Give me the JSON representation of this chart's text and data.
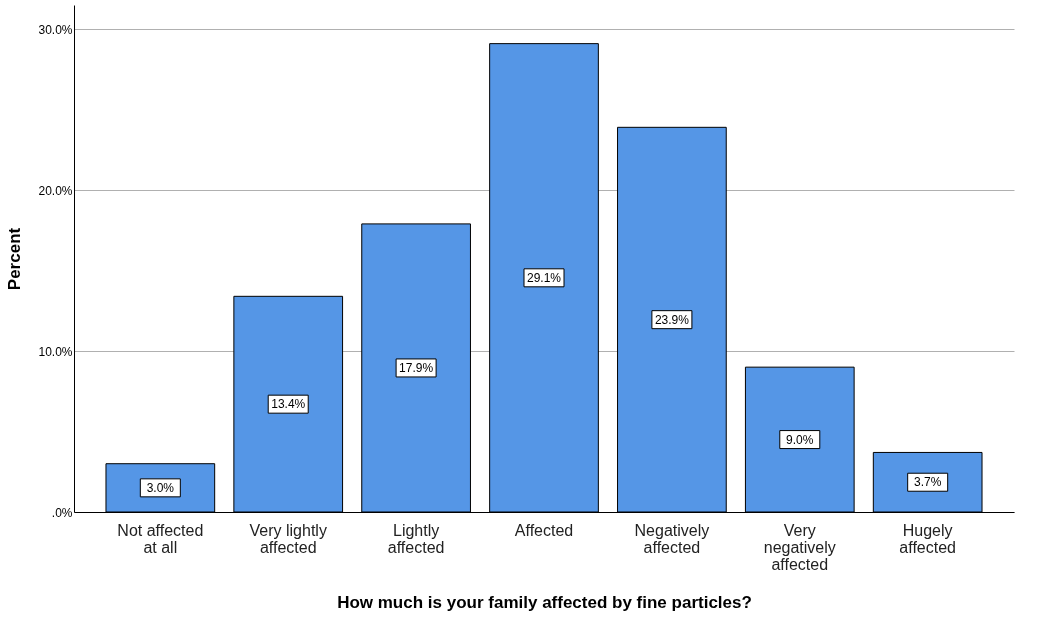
{
  "chart_data": {
    "type": "bar",
    "xlabel": "How much is your family affected by fine particles?",
    "ylabel": "Percent",
    "categories": [
      "Not affected at all",
      "Very lightly affected",
      "Lightly affected",
      "Affected",
      "Negatively affected",
      "Very negatively affected",
      "Hugely affected"
    ],
    "values": [
      3.0,
      13.4,
      17.9,
      29.1,
      23.9,
      9.0,
      3.7
    ],
    "value_labels": [
      "3.0%",
      "13.4%",
      "17.9%",
      "29.1%",
      "23.9%",
      "9.0%",
      "3.7%"
    ],
    "color": "#5596e6",
    "ylim": [
      0,
      31.5
    ],
    "yticks": [
      {
        "value": 0,
        "label": ".0%"
      },
      {
        "value": 10,
        "label": "10.0%"
      },
      {
        "value": 20,
        "label": "20.0%"
      },
      {
        "value": 30,
        "label": "30.0%"
      }
    ],
    "grid": "y"
  }
}
